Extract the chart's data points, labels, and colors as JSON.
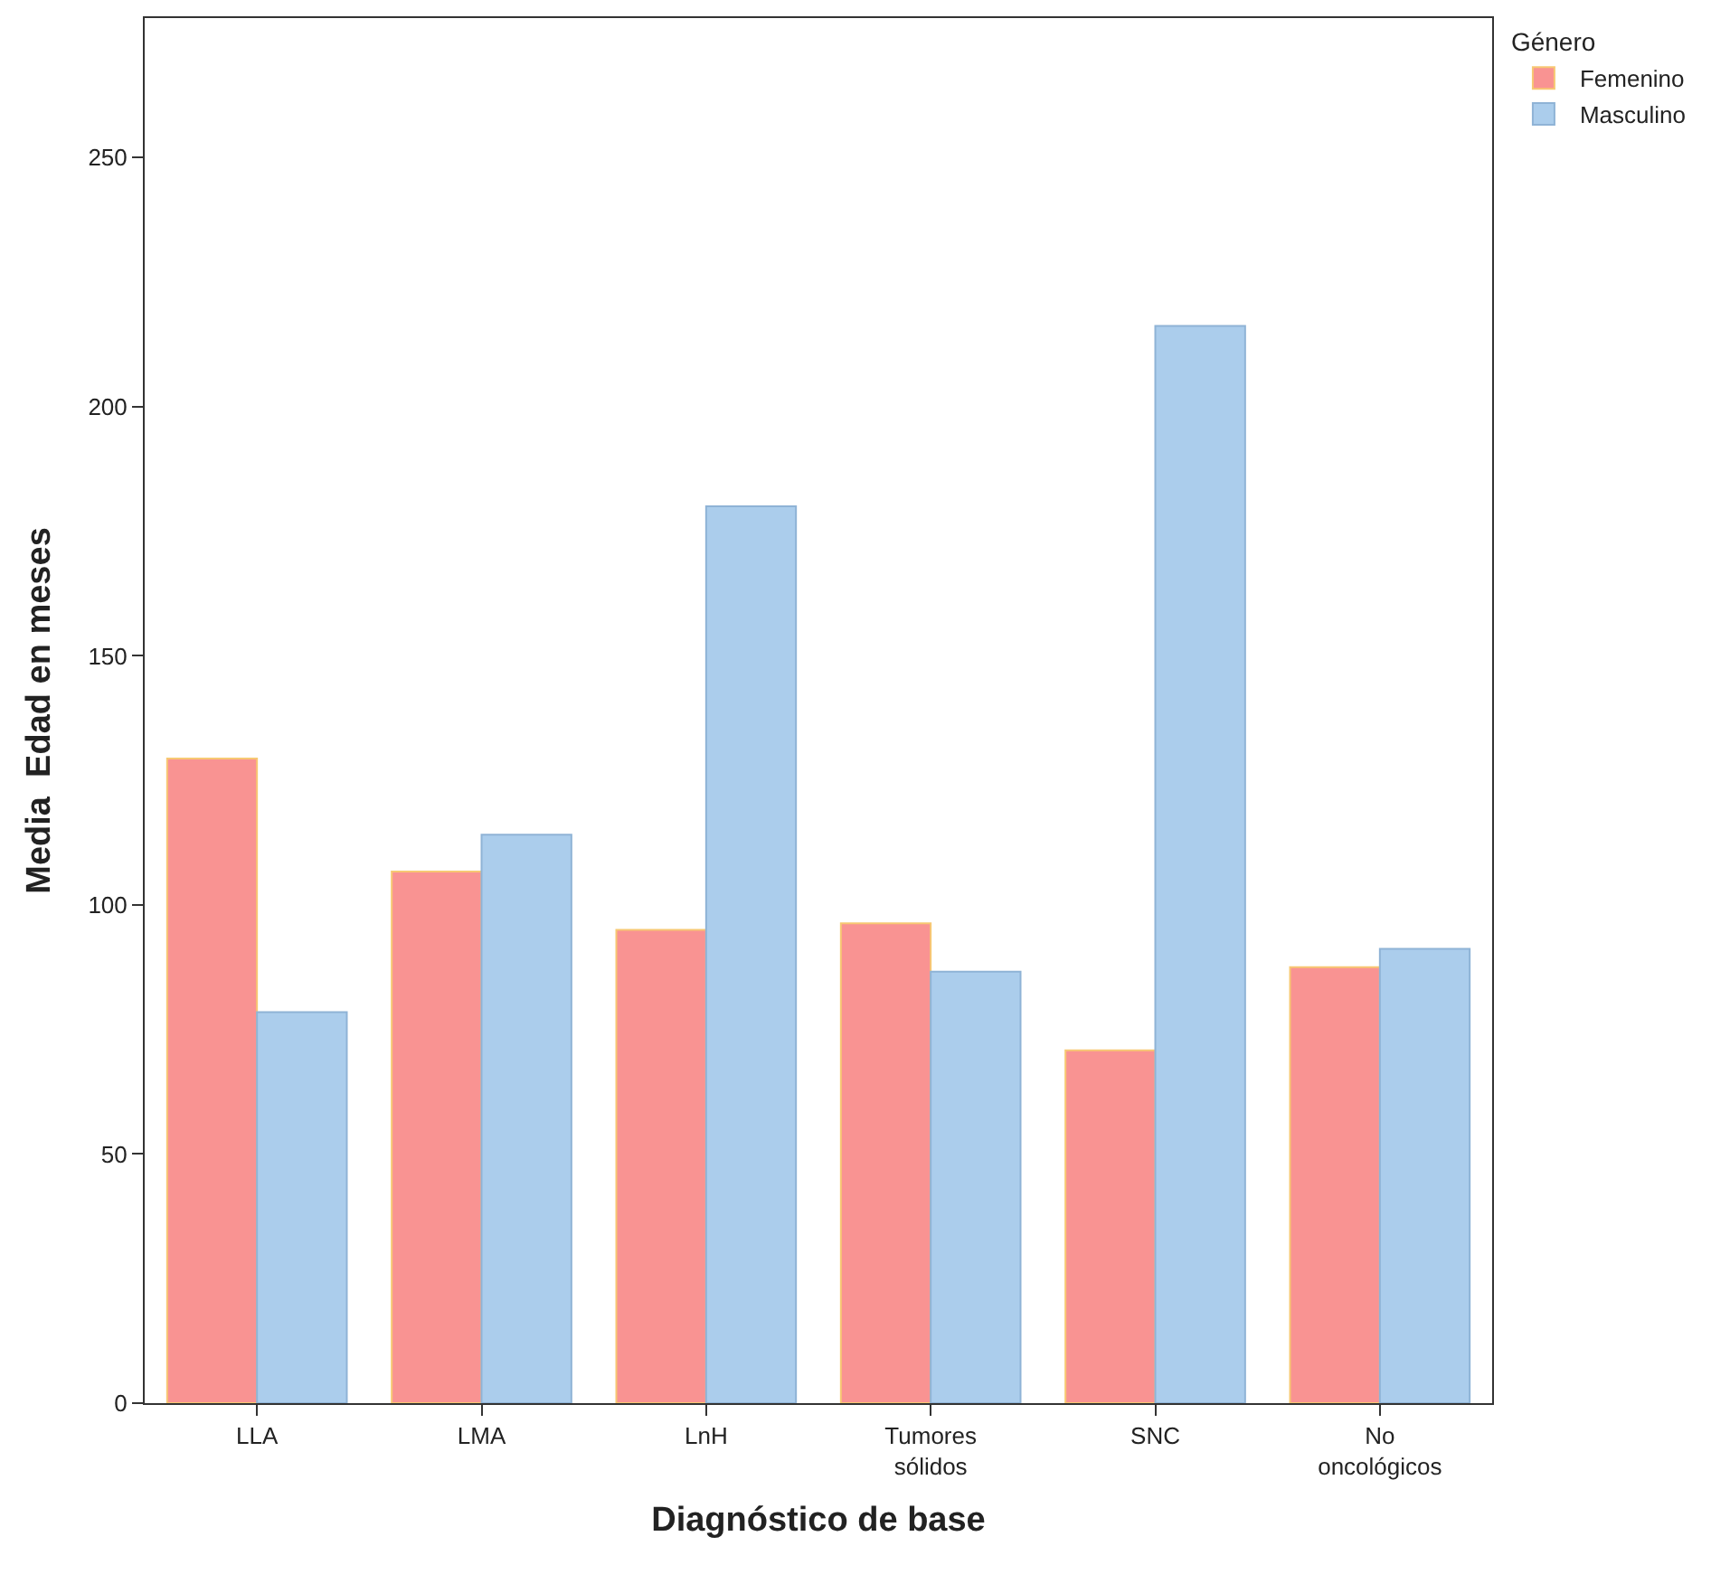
{
  "chart_data": {
    "type": "bar",
    "xlabel": "Diagnóstico de base",
    "ylabel": "Media  Edad en meses",
    "legend_title": "Género",
    "categories": [
      "LLA",
      "LMA",
      "LnH",
      "Tumores\nsólidos",
      "SNC",
      "No\noncológicos"
    ],
    "series": [
      {
        "name": "Femenino",
        "color": "#f99392",
        "values": [
          129.4,
          106.7,
          95.0,
          96.3,
          70.8,
          87.5
        ]
      },
      {
        "name": "Masculino",
        "color": "#abcdec",
        "values": [
          78.5,
          114.1,
          180.0,
          86.6,
          216.2,
          91.2
        ]
      }
    ],
    "ylim": [
      0,
      278
    ],
    "yticks": [
      0,
      50,
      100,
      150,
      200,
      250
    ],
    "legend": "top right"
  }
}
